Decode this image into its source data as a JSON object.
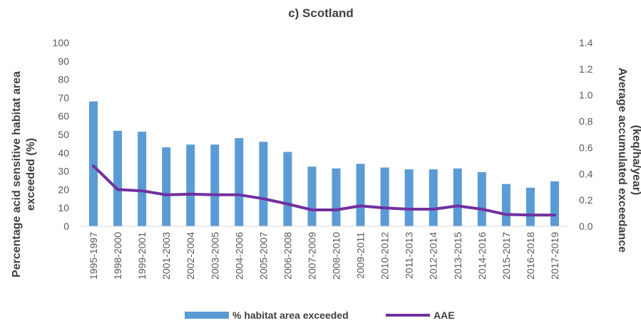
{
  "chart_data": {
    "type": "bar+line",
    "title": "c) Scotland",
    "categories": [
      "1995-1997",
      "1998-2000",
      "1999-2001",
      "2001-2003",
      "2002-2004",
      "2003-2005",
      "2004-2006",
      "2005-2007",
      "2006-2008",
      "2007-2009",
      "2008-2010",
      "2009-2011",
      "2010-2012",
      "2011-2013",
      "2012-2014",
      "2013-2015",
      "2014-2016",
      "2015-2017",
      "2016-2018",
      "2017-2019"
    ],
    "series": [
      {
        "name": "% habitat area exceeded",
        "type": "bar",
        "axis": "left",
        "color": "#5B9BD5",
        "values": [
          68,
          52,
          51.5,
          43,
          44.5,
          44.5,
          48,
          46,
          40.5,
          32.5,
          31.5,
          34,
          32,
          31,
          31,
          31.5,
          29.5,
          23,
          21,
          24.5
        ]
      },
      {
        "name": "AAE",
        "type": "line",
        "axis": "right",
        "color": "#7030A0",
        "values": [
          0.46,
          0.28,
          0.27,
          0.24,
          0.245,
          0.24,
          0.24,
          0.21,
          0.17,
          0.125,
          0.125,
          0.155,
          0.14,
          0.13,
          0.13,
          0.155,
          0.13,
          0.09,
          0.085,
          0.085
        ]
      }
    ],
    "ylabel": "Percentage acid sensitive habitat area exceeded (%)",
    "ylabel_lines": [
      "Percentage acid sensitive habitat area",
      "exceeded (%)"
    ],
    "y2label": "Average accumulated exceedance (keq/ha/year)",
    "y2label_lines": [
      "Average accumulated exceedance",
      "(keq/ha/year)"
    ],
    "ylim": [
      0,
      100
    ],
    "y_ticks": [
      "0",
      "10",
      "20",
      "30",
      "40",
      "50",
      "60",
      "70",
      "80",
      "90",
      "100"
    ],
    "y2lim": [
      0,
      1.4
    ],
    "y2_ticks": [
      "0.0",
      "0.2",
      "0.4",
      "0.6",
      "0.8",
      "1.0",
      "1.2",
      "1.4"
    ],
    "grid": false,
    "legend_position": "bottom"
  }
}
